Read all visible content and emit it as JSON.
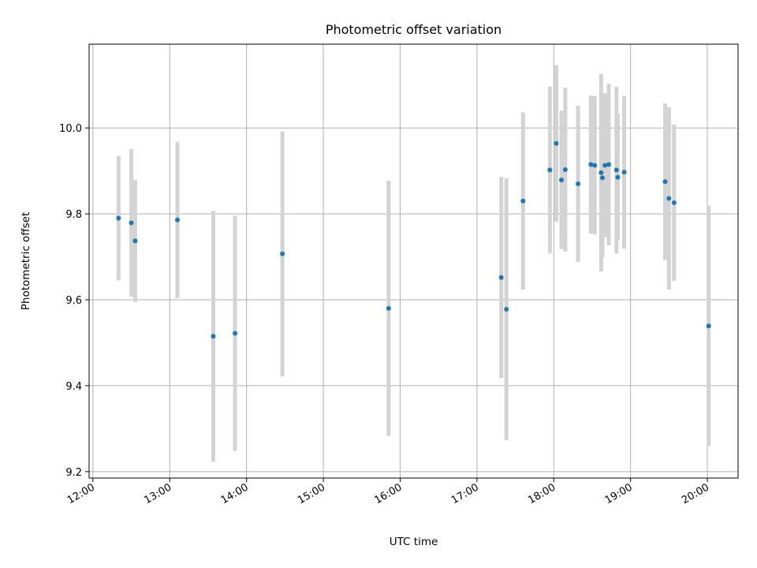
{
  "chart_data": {
    "type": "scatter",
    "title": "Photometric offset variation",
    "xlabel": "UTC time",
    "ylabel": "Photometric offset",
    "x_unit": "hours UTC",
    "xlim": [
      "11:57",
      "20:24"
    ],
    "ylim": [
      9.185,
      10.195
    ],
    "x_ticks": [
      "12:00",
      "13:00",
      "14:00",
      "15:00",
      "16:00",
      "17:00",
      "18:00",
      "19:00",
      "20:00"
    ],
    "y_ticks": [
      9.2,
      9.4,
      9.6,
      9.8,
      10.0
    ],
    "y_tick_labels": [
      "9.2",
      "9.4",
      "9.6",
      "9.8",
      "10.0"
    ],
    "grid": true,
    "point_color": "#1f77b4",
    "errorbar_color": "#d3d3d3",
    "points": [
      {
        "x": "12:20",
        "y": 9.79,
        "err": 0.145
      },
      {
        "x": "12:30",
        "y": 9.779,
        "err": 0.172
      },
      {
        "x": "12:33",
        "y": 9.737,
        "err": 0.142
      },
      {
        "x": "13:06",
        "y": 9.786,
        "err": 0.182
      },
      {
        "x": "13:34",
        "y": 9.515,
        "err": 0.292
      },
      {
        "x": "13:51",
        "y": 9.522,
        "err": 0.274
      },
      {
        "x": "14:28",
        "y": 9.707,
        "err": 0.285
      },
      {
        "x": "15:51",
        "y": 9.58,
        "err": 0.297
      },
      {
        "x": "17:19",
        "y": 9.652,
        "err": 0.234
      },
      {
        "x": "17:23",
        "y": 9.578,
        "err": 0.305
      },
      {
        "x": "17:36",
        "y": 9.83,
        "err": 0.206
      },
      {
        "x": "17:57",
        "y": 9.902,
        "err": 0.194
      },
      {
        "x": "18:02",
        "y": 9.964,
        "err": 0.182
      },
      {
        "x": "18:06",
        "y": 9.879,
        "err": 0.161
      },
      {
        "x": "18:09",
        "y": 9.903,
        "err": 0.191
      },
      {
        "x": "18:19",
        "y": 9.87,
        "err": 0.182
      },
      {
        "x": "18:29",
        "y": 9.915,
        "err": 0.161
      },
      {
        "x": "18:32",
        "y": 9.913,
        "err": 0.161
      },
      {
        "x": "18:37",
        "y": 9.896,
        "err": 0.23
      },
      {
        "x": "18:38",
        "y": 9.884,
        "err": 0.185
      },
      {
        "x": "18:40",
        "y": 9.913,
        "err": 0.168
      },
      {
        "x": "18:43",
        "y": 9.915,
        "err": 0.188
      },
      {
        "x": "18:49",
        "y": 9.902,
        "err": 0.194
      },
      {
        "x": "18:50",
        "y": 9.885,
        "err": 0.148
      },
      {
        "x": "18:55",
        "y": 9.897,
        "err": 0.178
      },
      {
        "x": "19:27",
        "y": 9.875,
        "err": 0.182
      },
      {
        "x": "19:30",
        "y": 9.836,
        "err": 0.212
      },
      {
        "x": "19:34",
        "y": 9.826,
        "err": 0.182
      },
      {
        "x": "20:01",
        "y": 9.539,
        "err": 0.28
      }
    ]
  }
}
